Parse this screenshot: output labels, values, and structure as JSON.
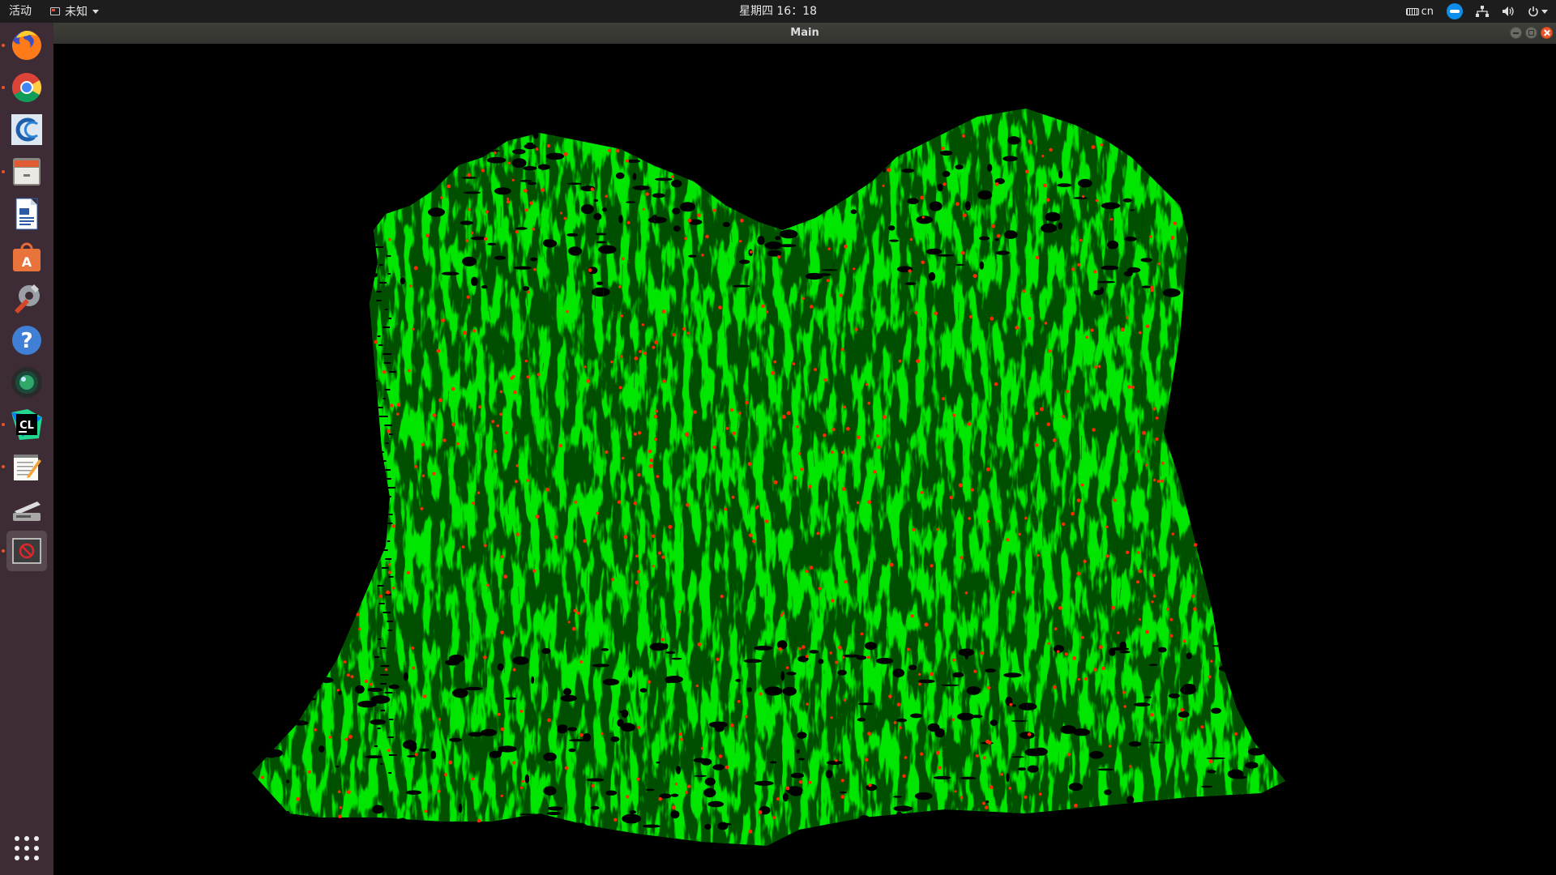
{
  "topbar": {
    "activities": "活动",
    "app_menu": "未知",
    "clock": "星期四 16：18",
    "keyboard_layout": "cn"
  },
  "dock": {
    "items": [
      {
        "name": "firefox",
        "icon": "firefox-icon",
        "running": true
      },
      {
        "name": "chrome",
        "icon": "chrome-icon",
        "running": true
      },
      {
        "name": "cloudcompare",
        "icon": "cloudcompare-icon",
        "running": false
      },
      {
        "name": "files",
        "icon": "file-cabinet-icon",
        "running": true
      },
      {
        "name": "writer",
        "icon": "document-icon",
        "running": false
      },
      {
        "name": "software",
        "icon": "shopping-bag-icon",
        "running": false
      },
      {
        "name": "settings",
        "icon": "wrench-gear-icon",
        "running": false
      },
      {
        "name": "help",
        "icon": "question-icon",
        "running": false
      },
      {
        "name": "camera",
        "icon": "lens-icon",
        "running": false
      },
      {
        "name": "clion",
        "icon": "clion-icon",
        "running": true
      },
      {
        "name": "text-editor",
        "icon": "notepad-icon",
        "running": true
      },
      {
        "name": "scanner",
        "icon": "scanner-icon",
        "running": false
      },
      {
        "name": "main-app",
        "icon": "no-entry-window-icon",
        "running": true,
        "active": true
      }
    ],
    "show_apps_icon": "grid-dots-icon"
  },
  "window": {
    "title": "Main"
  },
  "viewport": {
    "background": "#000000",
    "point_color": "#00e600",
    "feature_color": "#ff2a00"
  }
}
